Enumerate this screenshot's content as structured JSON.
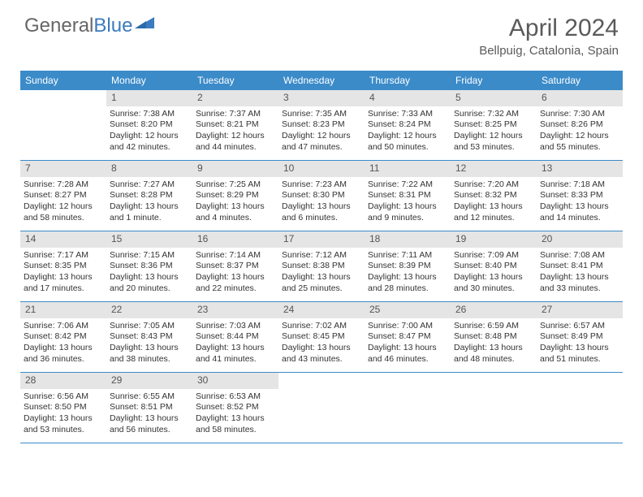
{
  "logo": {
    "text1": "General",
    "text2": "Blue"
  },
  "title": "April 2024",
  "location": "Bellpuig, Catalonia, Spain",
  "dayHeaders": [
    "Sunday",
    "Monday",
    "Tuesday",
    "Wednesday",
    "Thursday",
    "Friday",
    "Saturday"
  ],
  "colors": {
    "header_bg": "#3b8bc9",
    "band_bg": "#e5e5e5",
    "text": "#333333",
    "logo_gray": "#666666",
    "logo_blue": "#3b7bbf"
  },
  "weeks": [
    [
      {
        "num": "",
        "sunrise": "",
        "sunset": "",
        "daylight": "",
        "empty": true
      },
      {
        "num": "1",
        "sunrise": "Sunrise: 7:38 AM",
        "sunset": "Sunset: 8:20 PM",
        "daylight": "Daylight: 12 hours and 42 minutes."
      },
      {
        "num": "2",
        "sunrise": "Sunrise: 7:37 AM",
        "sunset": "Sunset: 8:21 PM",
        "daylight": "Daylight: 12 hours and 44 minutes."
      },
      {
        "num": "3",
        "sunrise": "Sunrise: 7:35 AM",
        "sunset": "Sunset: 8:23 PM",
        "daylight": "Daylight: 12 hours and 47 minutes."
      },
      {
        "num": "4",
        "sunrise": "Sunrise: 7:33 AM",
        "sunset": "Sunset: 8:24 PM",
        "daylight": "Daylight: 12 hours and 50 minutes."
      },
      {
        "num": "5",
        "sunrise": "Sunrise: 7:32 AM",
        "sunset": "Sunset: 8:25 PM",
        "daylight": "Daylight: 12 hours and 53 minutes."
      },
      {
        "num": "6",
        "sunrise": "Sunrise: 7:30 AM",
        "sunset": "Sunset: 8:26 PM",
        "daylight": "Daylight: 12 hours and 55 minutes."
      }
    ],
    [
      {
        "num": "7",
        "sunrise": "Sunrise: 7:28 AM",
        "sunset": "Sunset: 8:27 PM",
        "daylight": "Daylight: 12 hours and 58 minutes."
      },
      {
        "num": "8",
        "sunrise": "Sunrise: 7:27 AM",
        "sunset": "Sunset: 8:28 PM",
        "daylight": "Daylight: 13 hours and 1 minute."
      },
      {
        "num": "9",
        "sunrise": "Sunrise: 7:25 AM",
        "sunset": "Sunset: 8:29 PM",
        "daylight": "Daylight: 13 hours and 4 minutes."
      },
      {
        "num": "10",
        "sunrise": "Sunrise: 7:23 AM",
        "sunset": "Sunset: 8:30 PM",
        "daylight": "Daylight: 13 hours and 6 minutes."
      },
      {
        "num": "11",
        "sunrise": "Sunrise: 7:22 AM",
        "sunset": "Sunset: 8:31 PM",
        "daylight": "Daylight: 13 hours and 9 minutes."
      },
      {
        "num": "12",
        "sunrise": "Sunrise: 7:20 AM",
        "sunset": "Sunset: 8:32 PM",
        "daylight": "Daylight: 13 hours and 12 minutes."
      },
      {
        "num": "13",
        "sunrise": "Sunrise: 7:18 AM",
        "sunset": "Sunset: 8:33 PM",
        "daylight": "Daylight: 13 hours and 14 minutes."
      }
    ],
    [
      {
        "num": "14",
        "sunrise": "Sunrise: 7:17 AM",
        "sunset": "Sunset: 8:35 PM",
        "daylight": "Daylight: 13 hours and 17 minutes."
      },
      {
        "num": "15",
        "sunrise": "Sunrise: 7:15 AM",
        "sunset": "Sunset: 8:36 PM",
        "daylight": "Daylight: 13 hours and 20 minutes."
      },
      {
        "num": "16",
        "sunrise": "Sunrise: 7:14 AM",
        "sunset": "Sunset: 8:37 PM",
        "daylight": "Daylight: 13 hours and 22 minutes."
      },
      {
        "num": "17",
        "sunrise": "Sunrise: 7:12 AM",
        "sunset": "Sunset: 8:38 PM",
        "daylight": "Daylight: 13 hours and 25 minutes."
      },
      {
        "num": "18",
        "sunrise": "Sunrise: 7:11 AM",
        "sunset": "Sunset: 8:39 PM",
        "daylight": "Daylight: 13 hours and 28 minutes."
      },
      {
        "num": "19",
        "sunrise": "Sunrise: 7:09 AM",
        "sunset": "Sunset: 8:40 PM",
        "daylight": "Daylight: 13 hours and 30 minutes."
      },
      {
        "num": "20",
        "sunrise": "Sunrise: 7:08 AM",
        "sunset": "Sunset: 8:41 PM",
        "daylight": "Daylight: 13 hours and 33 minutes."
      }
    ],
    [
      {
        "num": "21",
        "sunrise": "Sunrise: 7:06 AM",
        "sunset": "Sunset: 8:42 PM",
        "daylight": "Daylight: 13 hours and 36 minutes."
      },
      {
        "num": "22",
        "sunrise": "Sunrise: 7:05 AM",
        "sunset": "Sunset: 8:43 PM",
        "daylight": "Daylight: 13 hours and 38 minutes."
      },
      {
        "num": "23",
        "sunrise": "Sunrise: 7:03 AM",
        "sunset": "Sunset: 8:44 PM",
        "daylight": "Daylight: 13 hours and 41 minutes."
      },
      {
        "num": "24",
        "sunrise": "Sunrise: 7:02 AM",
        "sunset": "Sunset: 8:45 PM",
        "daylight": "Daylight: 13 hours and 43 minutes."
      },
      {
        "num": "25",
        "sunrise": "Sunrise: 7:00 AM",
        "sunset": "Sunset: 8:47 PM",
        "daylight": "Daylight: 13 hours and 46 minutes."
      },
      {
        "num": "26",
        "sunrise": "Sunrise: 6:59 AM",
        "sunset": "Sunset: 8:48 PM",
        "daylight": "Daylight: 13 hours and 48 minutes."
      },
      {
        "num": "27",
        "sunrise": "Sunrise: 6:57 AM",
        "sunset": "Sunset: 8:49 PM",
        "daylight": "Daylight: 13 hours and 51 minutes."
      }
    ],
    [
      {
        "num": "28",
        "sunrise": "Sunrise: 6:56 AM",
        "sunset": "Sunset: 8:50 PM",
        "daylight": "Daylight: 13 hours and 53 minutes."
      },
      {
        "num": "29",
        "sunrise": "Sunrise: 6:55 AM",
        "sunset": "Sunset: 8:51 PM",
        "daylight": "Daylight: 13 hours and 56 minutes."
      },
      {
        "num": "30",
        "sunrise": "Sunrise: 6:53 AM",
        "sunset": "Sunset: 8:52 PM",
        "daylight": "Daylight: 13 hours and 58 minutes."
      },
      {
        "num": "",
        "sunrise": "",
        "sunset": "",
        "daylight": "",
        "empty": true
      },
      {
        "num": "",
        "sunrise": "",
        "sunset": "",
        "daylight": "",
        "empty": true
      },
      {
        "num": "",
        "sunrise": "",
        "sunset": "",
        "daylight": "",
        "empty": true
      },
      {
        "num": "",
        "sunrise": "",
        "sunset": "",
        "daylight": "",
        "empty": true
      }
    ]
  ]
}
